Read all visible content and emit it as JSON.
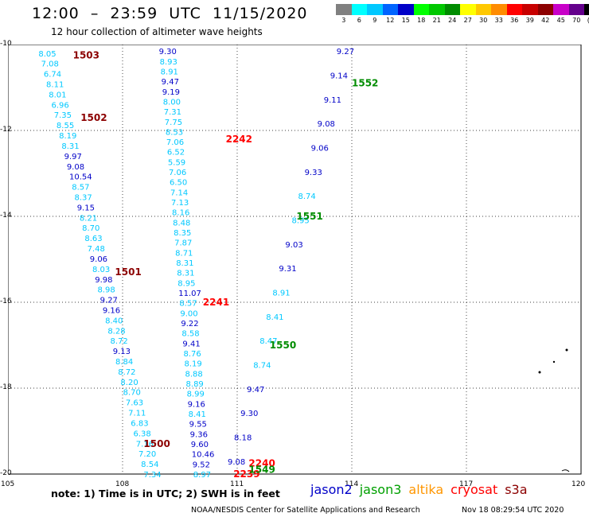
{
  "header": {
    "title": "12:00  –  23:59  UTC  11/15/2020",
    "subtitle": "12 hour collection of altimeter wave heights"
  },
  "colorbar": {
    "labels": [
      "3",
      "6",
      "9",
      "12",
      "15",
      "18",
      "21",
      "24",
      "27",
      "30",
      "33",
      "36",
      "39",
      "42",
      "45",
      "70",
      "(ft)"
    ],
    "colors": [
      "#808080",
      "#00ffff",
      "#00c8ff",
      "#0064ff",
      "#0000c8",
      "#00ff00",
      "#00c800",
      "#008c00",
      "#ffff00",
      "#ffc800",
      "#ff8c00",
      "#ff0000",
      "#c80000",
      "#8c0000",
      "#c800c8",
      "#64008c",
      "#000000"
    ]
  },
  "map": {
    "lon_range": [
      105,
      120
    ],
    "lat_range": [
      -20,
      -10
    ],
    "lon_ticks": [
      "105",
      "108",
      "111",
      "114",
      "117",
      "120"
    ],
    "lat_ticks": [
      "-10",
      "-12",
      "-14",
      "-16",
      "-18",
      "-20"
    ],
    "grid": true,
    "grid_style": "dotted"
  },
  "tracks": [
    {
      "satellite": "altika",
      "note": "leftmost descending track; most values legible",
      "lon_start": 106.05,
      "lat_start": -10.2,
      "lon_end": 108.8,
      "lat_end": -20.0,
      "values": [
        "8.05",
        "7.08",
        "6.74",
        "8.11",
        "8.01",
        "6.96",
        "7.35",
        "8.55",
        "8.19",
        "8.31",
        "9.97",
        "9.08",
        "10.54",
        "8.57",
        "8.37",
        "9.15",
        "8.21",
        "8.70",
        "8.63",
        "7.48",
        "9.06",
        "8.03",
        "9.98",
        "8.98",
        "9.27",
        "9.16",
        "8.40",
        "8.28",
        "8.72",
        "9.13",
        "8.84",
        "8.72",
        "8.20",
        "8.70",
        "7.63",
        "7.11",
        "6.83",
        "6.38",
        "7.16",
        "7.20",
        "8.54",
        "7.34"
      ],
      "colors": [
        "#00c8ff",
        "#00c8ff",
        "#00c8ff",
        "#00c8ff",
        "#00c8ff",
        "#00c8ff",
        "#00c8ff",
        "#00c8ff",
        "#00c8ff",
        "#00c8ff",
        "#0000c8",
        "#0000c8",
        "#0000c8",
        "#00c8ff",
        "#00c8ff",
        "#0000c8",
        "#00c8ff",
        "#00c8ff",
        "#00c8ff",
        "#00c8ff",
        "#0000c8",
        "#00c8ff",
        "#0000c8",
        "#00c8ff",
        "#0000c8",
        "#0000c8",
        "#00c8ff",
        "#00c8ff",
        "#00c8ff",
        "#0000c8",
        "#00c8ff",
        "#00c8ff",
        "#00c8ff",
        "#00c8ff",
        "#00c8ff",
        "#00c8ff",
        "#00c8ff",
        "#00c8ff",
        "#00c8ff",
        "#00c8ff",
        "#00c8ff",
        "#00c8ff"
      ]
    },
    {
      "satellite": "altika",
      "note": "second descending track",
      "lon_start": 109.2,
      "lat_start": -10.15,
      "lon_end": 110.1,
      "lat_end": -20.0,
      "values": [
        "9.30",
        "8.93",
        "8.91",
        "9.47",
        "9.19",
        "8.00",
        "7.31",
        "7.75",
        "8.53",
        "7.06",
        "6.52",
        "5.59",
        "7.06",
        "6.50",
        "7.14",
        "7.13",
        "8.16",
        "8.48",
        "8.35",
        "7.87",
        "8.71",
        "8.31",
        "8.31",
        "8.95",
        "11.07",
        "8.57",
        "9.00",
        "9.22",
        "8.58",
        "9.41",
        "8.76",
        "8.19",
        "8.88",
        "8.89",
        "8.99",
        "9.16",
        "8.41",
        "9.55",
        "9.36",
        "9.60",
        "10.46",
        "9.52",
        "8.97"
      ],
      "colors": [
        "#0000c8",
        "#00c8ff",
        "#00c8ff",
        "#0000c8",
        "#0000c8",
        "#00c8ff",
        "#00c8ff",
        "#00c8ff",
        "#00c8ff",
        "#00c8ff",
        "#00c8ff",
        "#00c8ff",
        "#00c8ff",
        "#00c8ff",
        "#00c8ff",
        "#00c8ff",
        "#00c8ff",
        "#00c8ff",
        "#00c8ff",
        "#00c8ff",
        "#00c8ff",
        "#00c8ff",
        "#00c8ff",
        "#00c8ff",
        "#0000c8",
        "#00c8ff",
        "#00c8ff",
        "#0000c8",
        "#00c8ff",
        "#0000c8",
        "#00c8ff",
        "#00c8ff",
        "#00c8ff",
        "#00c8ff",
        "#00c8ff",
        "#0000c8",
        "#00c8ff",
        "#0000c8",
        "#0000c8",
        "#0000c8",
        "#0000c8",
        "#0000c8",
        "#00c8ff"
      ]
    },
    {
      "satellite": "jason3",
      "note": "ascending track; overlapping labels, only legible values listed",
      "lon_start": 111.0,
      "lat_start": -19.7,
      "lon_end": 113.85,
      "lat_end": -10.15,
      "values": [
        "9.08",
        "8.18",
        "9.30",
        "9.47",
        "8.74",
        "8.47",
        "8.41",
        "8.91",
        "9.31",
        "9.03",
        "8.95",
        "8.74",
        "9.33",
        "9.06",
        "9.08",
        "9.11",
        "9.14",
        "9.27"
      ],
      "colors": [
        "#0000c8",
        "#0000c8",
        "#0000c8",
        "#0000c8",
        "#00c8ff",
        "#00c8ff",
        "#00c8ff",
        "#00c8ff",
        "#0000c8",
        "#0000c8",
        "#00c8ff",
        "#00c8ff",
        "#0000c8",
        "#0000c8",
        "#0000c8",
        "#0000c8",
        "#0000c8",
        "#0000c8"
      ]
    }
  ],
  "time_labels": [
    {
      "text": "1503",
      "lon": 106.7,
      "lat": -10.25,
      "color": "#8c0000"
    },
    {
      "text": "1502",
      "lon": 106.9,
      "lat": -11.7,
      "color": "#8c0000"
    },
    {
      "text": "1501",
      "lon": 107.8,
      "lat": -15.3,
      "color": "#8c0000"
    },
    {
      "text": "1500",
      "lon": 108.55,
      "lat": -19.3,
      "color": "#8c0000"
    },
    {
      "text": "2242",
      "lon": 110.7,
      "lat": -12.2,
      "color": "#ff0000"
    },
    {
      "text": "2241",
      "lon": 110.1,
      "lat": -16.0,
      "color": "#ff0000"
    },
    {
      "text": "2240",
      "lon": 111.3,
      "lat": -19.75,
      "color": "#ff0000"
    },
    {
      "text": "2239",
      "lon": 110.9,
      "lat": -20.0,
      "color": "#ff0000"
    },
    {
      "text": "1552",
      "lon": 114.0,
      "lat": -10.9,
      "color": "#008c00"
    },
    {
      "text": "1551",
      "lon": 112.55,
      "lat": -14.0,
      "color": "#008c00"
    },
    {
      "text": "1550",
      "lon": 111.85,
      "lat": -17.0,
      "color": "#008c00"
    },
    {
      "text": "1549",
      "lon": 111.3,
      "lat": -19.9,
      "color": "#008c00"
    }
  ],
  "note": "note:  1) Time is in UTC;  2) SWH is in feet",
  "legend": [
    {
      "label": "jason2",
      "color": "#0000c8"
    },
    {
      "label": "jason3",
      "color": "#00a000"
    },
    {
      "label": "altika",
      "color": "#ff9600"
    },
    {
      "label": "cryosat",
      "color": "#ff0000"
    },
    {
      "label": "s3a",
      "color": "#8c0000"
    }
  ],
  "footer": {
    "credit": "NOAA/NESDIS Center for Satellite Applications and Research",
    "timestamp": "Nov 18 08:29:54 UTC 2020"
  }
}
